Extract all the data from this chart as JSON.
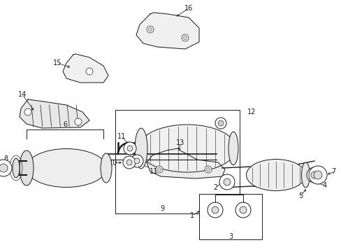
{
  "background_color": "#ffffff",
  "figsize": [
    4.89,
    3.6
  ],
  "dpi": 100,
  "line_color": "#1a1a1a",
  "lw": 0.7,
  "label_fs": 7.0
}
